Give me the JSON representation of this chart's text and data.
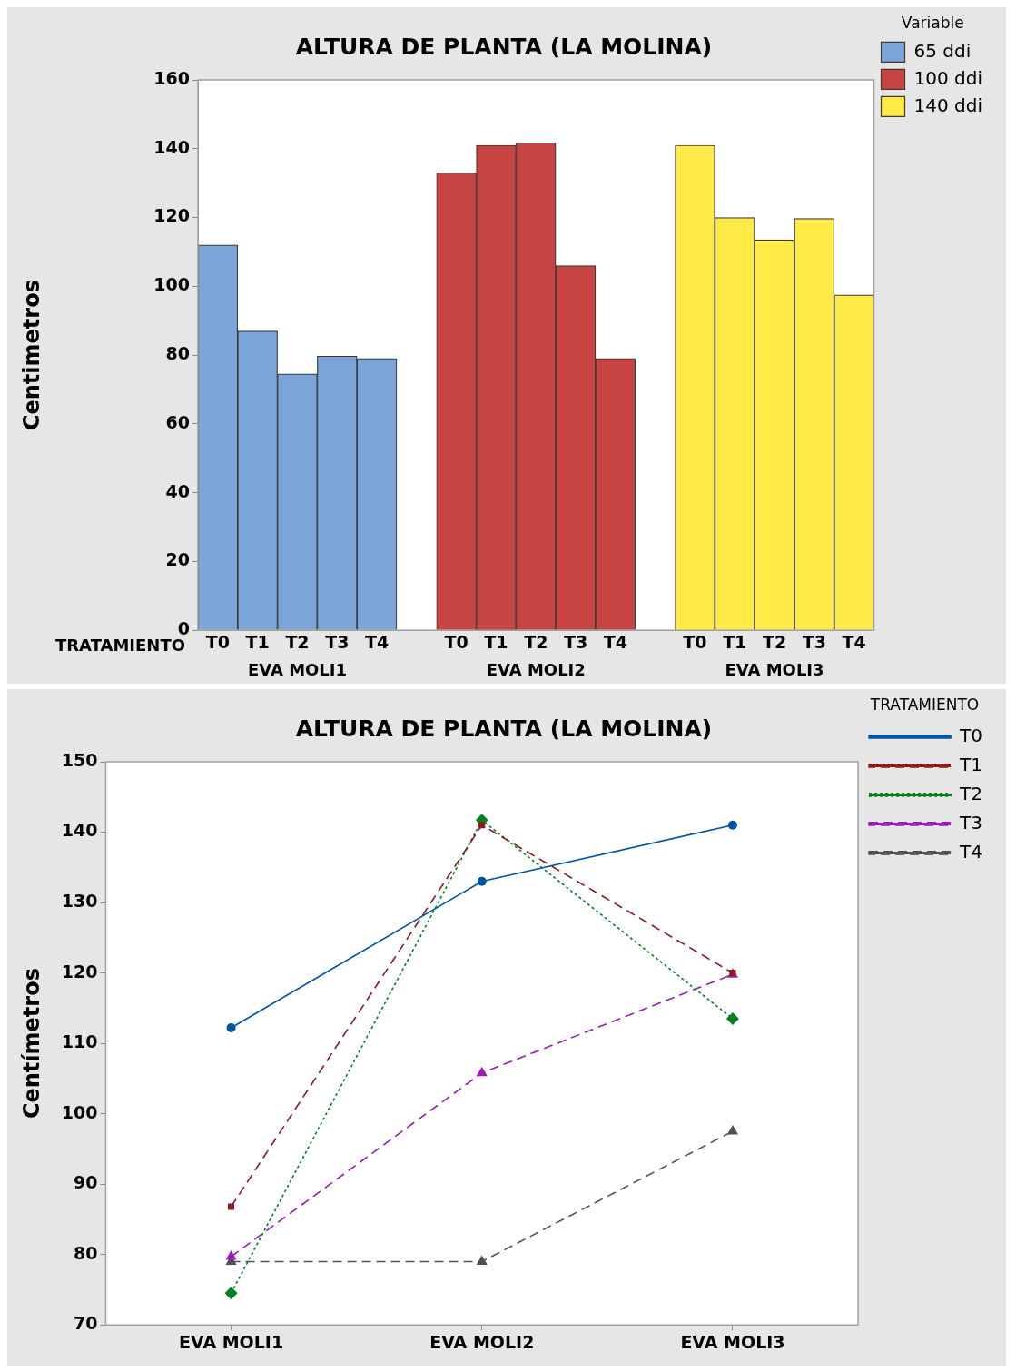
{
  "chart_data": [
    {
      "type": "bar",
      "title": "ALTURA DE PLANTA (LA MOLINA)",
      "ylabel": "Centimetros",
      "xlabel": "TRATAMIENTO",
      "legend_title": "Variable",
      "legend": "right",
      "grid": false,
      "categories": [
        "T0",
        "T1",
        "T2",
        "T3",
        "T4",
        null,
        "T0",
        "T1",
        "T2",
        "T3",
        "T4",
        null,
        "T0",
        "T1",
        "T2",
        "T3",
        "T4"
      ],
      "series": [
        {
          "name": "65 ddi",
          "color": "#7ba5d9",
          "values": [
            112,
            87,
            74.5,
            79.7,
            79,
            null,
            null,
            null,
            null,
            null,
            null,
            null,
            null,
            null,
            null,
            null,
            null
          ]
        },
        {
          "name": "100 ddi",
          "color": "#c84442",
          "values": [
            null,
            null,
            null,
            null,
            null,
            null,
            133,
            141,
            141.7,
            106,
            79,
            null,
            null,
            null,
            null,
            null,
            null
          ]
        },
        {
          "name": "140 ddi",
          "color": "#ffea47",
          "values": [
            null,
            null,
            null,
            null,
            null,
            null,
            null,
            null,
            null,
            null,
            null,
            null,
            141,
            120,
            113.5,
            119.7,
            97.5
          ]
        }
      ],
      "ylim": [
        0,
        160
      ],
      "yticks": [
        0,
        20,
        40,
        60,
        80,
        100,
        120,
        140,
        160
      ],
      "annotations": [
        "EVA MOLI1",
        "EVA MOLI2",
        "EVA MOLI3"
      ]
    },
    {
      "type": "line",
      "title": "ALTURA DE PLANTA (LA MOLINA)",
      "ylabel": "Centímetros",
      "legend_title": "TRATAMIENTO",
      "legend": "right",
      "grid": false,
      "categories": [
        "EVA MOLI1",
        "EVA MOLI2",
        "EVA MOLI3"
      ],
      "series": [
        {
          "name": "T0",
          "color": "#0054a6",
          "marker": "circle",
          "line_style": "solid",
          "values": [
            112.2,
            133,
            141
          ]
        },
        {
          "name": "T1",
          "color": "#8b1a1a",
          "marker": "square",
          "line_style": "dashed",
          "values": [
            86.8,
            141,
            120
          ]
        },
        {
          "name": "T2",
          "color": "#008020",
          "marker": "diamond",
          "line_style": "dotted",
          "values": [
            74.5,
            141.7,
            113.5
          ]
        },
        {
          "name": "T3",
          "color": "#9a1ab8",
          "marker": "triangle",
          "line_style": "dashed",
          "values": [
            79.7,
            105.8,
            119.8
          ]
        },
        {
          "name": "T4",
          "color": "#505050",
          "marker": "triangle",
          "line_style": "dashed",
          "values": [
            79,
            79,
            97.5
          ]
        }
      ],
      "ylim": [
        70,
        150
      ],
      "yticks": [
        70,
        80,
        90,
        100,
        110,
        120,
        130,
        140,
        150
      ]
    }
  ]
}
